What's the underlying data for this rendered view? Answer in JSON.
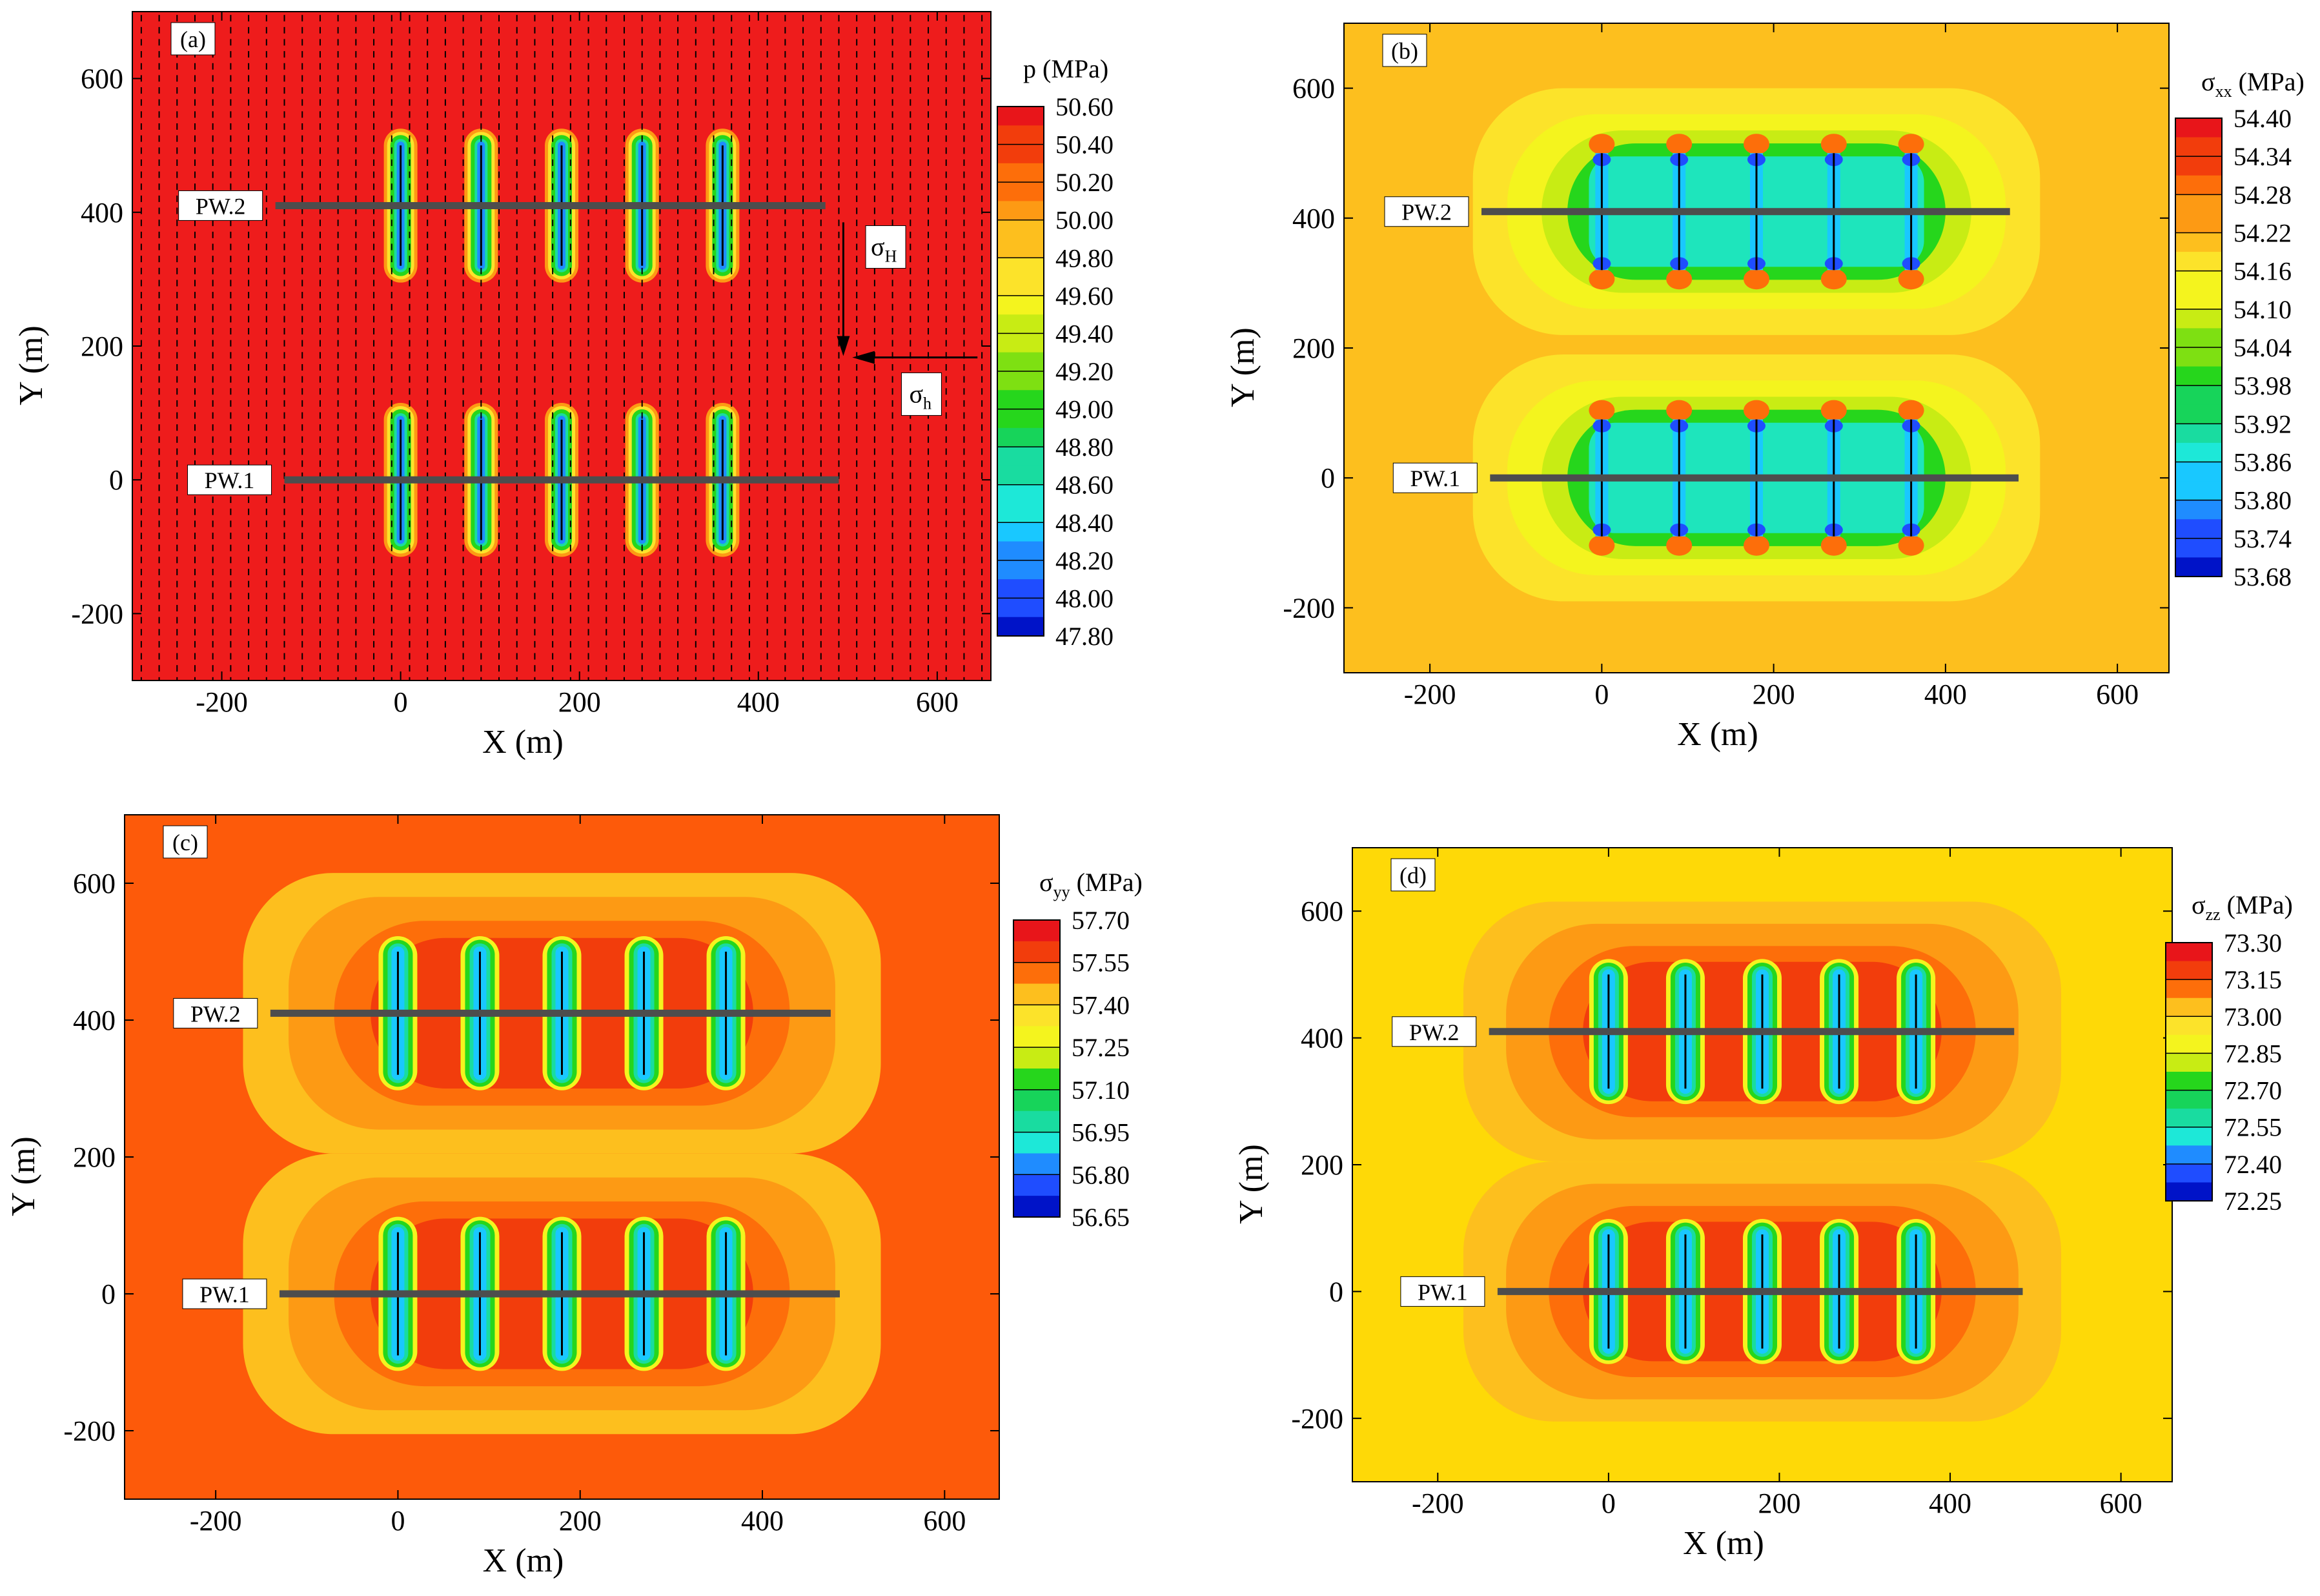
{
  "figure": {
    "panels_count": 4
  },
  "chart_data": [
    {
      "panel_label": "(a)",
      "type": "heatmap",
      "title": "",
      "xlabel": "X (m)",
      "ylabel": "Y (m)",
      "xlim": [
        -300,
        660
      ],
      "ylim": [
        -300,
        700
      ],
      "x_ticks": [
        -200,
        0,
        200,
        400,
        600
      ],
      "y_ticks": [
        -200,
        0,
        200,
        400,
        600
      ],
      "x_tick_labels": [
        "-200",
        "0",
        "200",
        "400",
        "600"
      ],
      "y_tick_labels": [
        "-200",
        "0",
        "200",
        "400",
        "600"
      ],
      "colorbar_title": "p (MPa)",
      "colorbar_title_main": "p",
      "colorbar_title_sub": "",
      "colorbar_title_unit": " (MPa)",
      "colorbar_ticks": [
        "50.60",
        "50.40",
        "50.20",
        "50.00",
        "49.80",
        "49.60",
        "49.40",
        "49.20",
        "49.00",
        "48.80",
        "48.60",
        "48.40",
        "48.20",
        "48.00",
        "47.80"
      ],
      "colorbar_range": [
        47.8,
        50.6
      ],
      "wells": [
        {
          "label": "PW.2",
          "y": 410,
          "x_start": -140,
          "x_end": 475
        },
        {
          "label": "PW.1",
          "y": 0,
          "x_start": -130,
          "x_end": 490
        }
      ],
      "fractures_x": [
        0,
        90,
        180,
        270,
        360
      ],
      "fracture_half_length": 90,
      "background_color": "#ee1c1c",
      "zone_style": "pressure",
      "show_vector_field": true,
      "stress_arrows": {
        "sigma_H_label": "σ",
        "sigma_H_sub": "H",
        "sigma_h_label": "σ",
        "sigma_h_sub": "h"
      }
    },
    {
      "panel_label": "(b)",
      "type": "heatmap",
      "title": "",
      "xlabel": "X (m)",
      "ylabel": "Y (m)",
      "xlim": [
        -300,
        660
      ],
      "ylim": [
        -300,
        700
      ],
      "x_ticks": [
        -200,
        0,
        200,
        400,
        600
      ],
      "y_ticks": [
        -200,
        0,
        200,
        400,
        600
      ],
      "x_tick_labels": [
        "-200",
        "0",
        "200",
        "400",
        "600"
      ],
      "y_tick_labels": [
        "-200",
        "0",
        "200",
        "400",
        "600"
      ],
      "colorbar_title": "σxx (MPa)",
      "colorbar_title_main": "σ",
      "colorbar_title_sub": "xx",
      "colorbar_title_unit": " (MPa)",
      "colorbar_ticks": [
        "54.40",
        "54.34",
        "54.28",
        "54.22",
        "54.16",
        "54.10",
        "54.04",
        "53.98",
        "53.92",
        "53.86",
        "53.80",
        "53.74",
        "53.68"
      ],
      "colorbar_range": [
        53.68,
        54.4
      ],
      "wells": [
        {
          "label": "PW.2",
          "y": 410,
          "x_start": -140,
          "x_end": 475
        },
        {
          "label": "PW.1",
          "y": 0,
          "x_start": -130,
          "x_end": 485
        }
      ],
      "fractures_x": [
        0,
        90,
        180,
        270,
        360
      ],
      "fracture_half_length": 90,
      "background_color": "#fdbf1e",
      "zone_style": "sxx",
      "show_vector_field": false
    },
    {
      "panel_label": "(c)",
      "type": "heatmap",
      "title": "",
      "xlabel": "X (m)",
      "ylabel": "Y (m)",
      "xlim": [
        -300,
        660
      ],
      "ylim": [
        -300,
        700
      ],
      "x_ticks": [
        -200,
        0,
        200,
        400,
        600
      ],
      "y_ticks": [
        -200,
        0,
        200,
        400,
        600
      ],
      "x_tick_labels": [
        "-200",
        "0",
        "200",
        "400",
        "600"
      ],
      "y_tick_labels": [
        "-200",
        "0",
        "200",
        "400",
        "600"
      ],
      "colorbar_title": "σyy (MPa)",
      "colorbar_title_main": "σ",
      "colorbar_title_sub": "yy",
      "colorbar_title_unit": " (MPa)",
      "colorbar_ticks": [
        "57.70",
        "57.55",
        "57.40",
        "57.25",
        "57.10",
        "56.95",
        "56.80",
        "56.65"
      ],
      "colorbar_range": [
        56.65,
        57.7
      ],
      "wells": [
        {
          "label": "PW.2",
          "y": 410,
          "x_start": -140,
          "x_end": 475
        },
        {
          "label": "PW.1",
          "y": 0,
          "x_start": -130,
          "x_end": 485
        }
      ],
      "fractures_x": [
        0,
        90,
        180,
        270,
        360
      ],
      "fracture_half_length": 90,
      "background_color": "#fd5a0a",
      "zone_style": "syy",
      "show_vector_field": false
    },
    {
      "panel_label": "(d)",
      "type": "heatmap",
      "title": "",
      "xlabel": "X (m)",
      "ylabel": "Y (m)",
      "xlim": [
        -300,
        660
      ],
      "ylim": [
        -300,
        700
      ],
      "x_ticks": [
        -200,
        0,
        200,
        400,
        600
      ],
      "y_ticks": [
        -200,
        0,
        200,
        400,
        600
      ],
      "x_tick_labels": [
        "-200",
        "0",
        "200",
        "400",
        "600"
      ],
      "y_tick_labels": [
        "-200",
        "0",
        "200",
        "400",
        "600"
      ],
      "colorbar_title": "σzz (MPa)",
      "colorbar_title_main": "σ",
      "colorbar_title_sub": "zz",
      "colorbar_title_unit": " (MPa)",
      "colorbar_ticks": [
        "73.30",
        "73.15",
        "73.00",
        "72.85",
        "72.70",
        "72.55",
        "72.40",
        "72.25"
      ],
      "colorbar_range": [
        72.25,
        73.3
      ],
      "wells": [
        {
          "label": "PW.2",
          "y": 410,
          "x_start": -140,
          "x_end": 475
        },
        {
          "label": "PW.1",
          "y": 0,
          "x_start": -130,
          "x_end": 485
        }
      ],
      "fractures_x": [
        0,
        90,
        180,
        270,
        360
      ],
      "fracture_half_length": 90,
      "background_color": "#fed907",
      "zone_style": "szz",
      "show_vector_field": false
    }
  ],
  "colors": {
    "colormap": [
      "#0013c8",
      "#1f4dff",
      "#1f8cff",
      "#19c8ff",
      "#1de8d8",
      "#19dca0",
      "#17d45a",
      "#26d61c",
      "#7ee012",
      "#c8ec14",
      "#f4f41e",
      "#fce32a",
      "#fdbf1e",
      "#fd9a14",
      "#fd6e0a",
      "#f23d0c",
      "#e8151a"
    ],
    "well_line": "#4d4d4d",
    "fracture_line": "#000000"
  }
}
